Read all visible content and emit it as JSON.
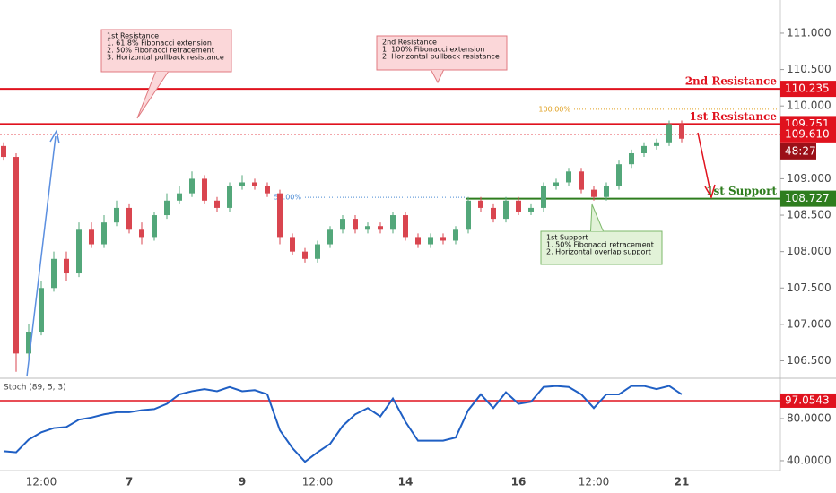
{
  "chart_data": [
    {
      "type": "candlestick",
      "categories": [
        null,
        null,
        null,
        "12:00",
        null,
        null,
        null,
        null,
        null,
        null,
        "7",
        null,
        null,
        null,
        null,
        null,
        null,
        null,
        null,
        "9",
        null,
        null,
        null,
        null,
        null,
        "12:00",
        null,
        null,
        null,
        null,
        null,
        null,
        "14",
        null,
        null,
        null,
        null,
        null,
        null,
        null,
        null,
        "16",
        null,
        null,
        null,
        null,
        null,
        "12:00",
        null,
        null,
        null,
        null,
        null,
        null,
        "21"
      ],
      "open": [
        109.45,
        109.3,
        106.6,
        106.9,
        107.5,
        107.9,
        107.7,
        108.3,
        108.1,
        108.4,
        108.6,
        108.3,
        108.2,
        108.5,
        108.7,
        108.8,
        109.0,
        108.7,
        108.6,
        108.9,
        108.95,
        108.9,
        108.8,
        108.2,
        108.0,
        107.9,
        108.1,
        108.3,
        108.45,
        108.3,
        108.35,
        108.3,
        108.5,
        108.2,
        108.1,
        108.2,
        108.15,
        108.3,
        108.7,
        108.6,
        108.45,
        108.7,
        108.55,
        108.6,
        108.9,
        108.95,
        109.1,
        108.85,
        108.75,
        108.9,
        109.2,
        109.35,
        109.45,
        109.5,
        109.75
      ],
      "high": [
        109.5,
        109.35,
        107.0,
        107.6,
        108.0,
        108.0,
        108.4,
        108.4,
        108.5,
        108.7,
        108.65,
        108.4,
        108.55,
        108.8,
        108.9,
        109.1,
        109.05,
        108.75,
        108.95,
        109.05,
        109.0,
        108.95,
        108.85,
        108.25,
        108.05,
        108.15,
        108.35,
        108.5,
        108.5,
        108.4,
        108.4,
        108.55,
        108.55,
        108.25,
        108.25,
        108.25,
        108.35,
        108.75,
        108.75,
        108.65,
        108.75,
        108.75,
        108.65,
        108.95,
        109.0,
        109.15,
        109.15,
        108.9,
        108.95,
        109.25,
        109.4,
        109.5,
        109.55,
        109.8,
        109.8
      ],
      "low": [
        109.25,
        106.35,
        106.5,
        106.85,
        107.45,
        107.6,
        107.65,
        108.05,
        108.05,
        108.35,
        108.25,
        108.1,
        108.15,
        108.45,
        108.65,
        108.75,
        108.65,
        108.55,
        108.55,
        108.85,
        108.85,
        108.75,
        108.1,
        107.95,
        107.85,
        107.85,
        108.05,
        108.25,
        108.25,
        108.25,
        108.25,
        108.25,
        108.15,
        108.05,
        108.05,
        108.1,
        108.1,
        108.25,
        108.55,
        108.4,
        108.4,
        108.5,
        108.5,
        108.55,
        108.85,
        108.9,
        108.8,
        108.7,
        108.7,
        108.85,
        109.15,
        109.3,
        109.4,
        109.45,
        109.5
      ],
      "close": [
        109.3,
        106.6,
        106.9,
        107.5,
        107.9,
        107.7,
        108.3,
        108.1,
        108.4,
        108.6,
        108.3,
        108.2,
        108.5,
        108.7,
        108.8,
        109.0,
        108.7,
        108.6,
        108.9,
        108.95,
        108.9,
        108.8,
        108.2,
        108.0,
        107.9,
        108.1,
        108.3,
        108.45,
        108.3,
        108.35,
        108.3,
        108.5,
        108.2,
        108.1,
        108.2,
        108.15,
        108.3,
        108.7,
        108.6,
        108.45,
        108.7,
        108.55,
        108.6,
        108.9,
        108.95,
        109.1,
        108.85,
        108.75,
        108.9,
        109.2,
        109.35,
        109.45,
        109.5,
        109.75,
        109.55
      ],
      "up_color": "#53a77a",
      "down_color": "#d9454f",
      "ylim": [
        106.26,
        111.455
      ],
      "yticks": [
        {
          "value": 111,
          "label": "111.000"
        },
        {
          "value": 110.5,
          "label": "110.500"
        },
        {
          "value": 110,
          "label": "110.000"
        },
        {
          "value": 109,
          "label": "109.000"
        },
        {
          "value": 108.5,
          "label": "108.500"
        },
        {
          "value": 108,
          "label": "108.000"
        },
        {
          "value": 107.5,
          "label": "107.500"
        },
        {
          "value": 107,
          "label": "107.000"
        },
        {
          "value": 106.5,
          "label": "106.500"
        }
      ],
      "levels": [
        {
          "name": "2nd Resistance",
          "value": 110.235,
          "value_label": "110.235",
          "color": "#e0121e"
        },
        {
          "name": "1st Resistance",
          "value": 109.751,
          "value_label": "109.751",
          "color": "#e0121e"
        },
        {
          "name": "1st Support",
          "value": 108.727,
          "value_label": "108.727",
          "color": "#2e7d1e"
        }
      ],
      "current_price": {
        "value": 109.61,
        "label": "109.610",
        "countdown": "48:27"
      },
      "fib_levels": [
        {
          "label": "100.00%",
          "value": 109.955,
          "color": "#e0a020"
        },
        {
          "label": "50.00%",
          "value": 108.745,
          "color": "#4a8ad4"
        }
      ],
      "annotations": [
        {
          "lines": [
            "1st Resistance",
            "1. 61.8% Fibonacci extension",
            "2. 50% Fibonacci retracement",
            "3. Horizontal pullback resistance"
          ]
        },
        {
          "lines": [
            "2nd Resistance",
            "1. 100% Fibonacci extension",
            "2. Horizontal pullback resistance"
          ]
        },
        {
          "lines": [
            "1st Support",
            "1. 50% Fibonacci retracement",
            "2. Horizontal overlap support"
          ]
        }
      ]
    },
    {
      "type": "line",
      "series": [
        {
          "name": "Stoch (89, 5, 3)",
          "color": "#1f5fc4",
          "values": [
            49,
            48,
            60,
            67,
            71,
            72,
            79,
            81,
            84,
            86,
            86,
            88,
            89,
            94,
            103,
            106,
            108,
            106,
            110,
            106,
            107,
            103,
            69,
            52,
            39,
            48,
            56,
            73,
            84,
            90,
            82,
            99,
            77,
            59,
            59,
            59,
            62,
            88,
            103,
            90,
            105,
            94,
            96,
            110,
            111,
            110,
            103,
            90,
            103,
            103,
            111,
            111,
            108,
            111,
            103
          ]
        }
      ],
      "ylim": [
        30.6,
        118.3
      ],
      "yticks": [
        {
          "value": 80,
          "label": "80.0000"
        },
        {
          "value": 40,
          "label": "40.0000"
        }
      ],
      "level": {
        "value": 97.0543,
        "label": "97.0543",
        "color": "#e0121e"
      }
    }
  ]
}
